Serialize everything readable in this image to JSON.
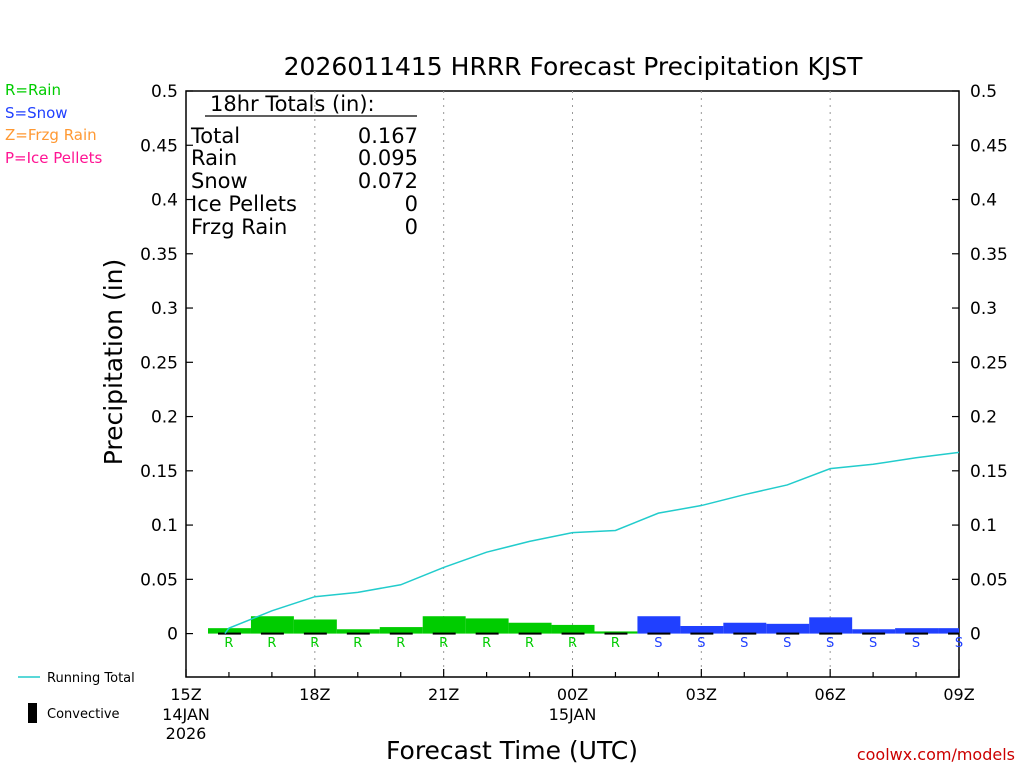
{
  "chart_data": {
    "type": "bar",
    "title": "2026011415 HRRR Forecast Precipitation KJST",
    "xlabel": "Forecast Time (UTC)",
    "ylabel": "Precipitation (in)",
    "ylim": [
      -0.04,
      0.5
    ],
    "xlim": [
      0,
      18
    ],
    "y_ticks": [
      "0",
      "0.05",
      "0.1",
      "0.15",
      "0.2",
      "0.25",
      "0.3",
      "0.35",
      "0.4",
      "0.45",
      "0.5"
    ],
    "y_tick_values": [
      0,
      0.05,
      0.1,
      0.15,
      0.2,
      0.25,
      0.3,
      0.35,
      0.4,
      0.45,
      0.5
    ],
    "x_ticks": [
      {
        "hour": 0,
        "label": "15Z",
        "sub1": "14JAN",
        "sub2": "2026"
      },
      {
        "hour": 3,
        "label": "18Z",
        "sub1": "",
        "sub2": ""
      },
      {
        "hour": 6,
        "label": "21Z",
        "sub1": "",
        "sub2": ""
      },
      {
        "hour": 9,
        "label": "00Z",
        "sub1": "15JAN",
        "sub2": ""
      },
      {
        "hour": 12,
        "label": "03Z",
        "sub1": "",
        "sub2": ""
      },
      {
        "hour": 15,
        "label": "06Z",
        "sub1": "",
        "sub2": ""
      },
      {
        "hour": 18,
        "label": "09Z",
        "sub1": "",
        "sub2": ""
      }
    ],
    "hourly_precip": {
      "hours": [
        1,
        2,
        3,
        4,
        5,
        6,
        7,
        8,
        9,
        10,
        11,
        12,
        13,
        14,
        15,
        16,
        17,
        18
      ],
      "values": [
        0.005,
        0.016,
        0.013,
        0.004,
        0.006,
        0.016,
        0.014,
        0.01,
        0.008,
        0.002,
        0.016,
        0.007,
        0.01,
        0.009,
        0.015,
        0.004,
        0.005,
        0.005
      ],
      "types": [
        "R",
        "R",
        "R",
        "R",
        "R",
        "R",
        "R",
        "R",
        "R",
        "R",
        "S",
        "S",
        "S",
        "S",
        "S",
        "S",
        "S",
        "S"
      ]
    },
    "running_total": {
      "name": "Running Total",
      "hours": [
        1,
        2,
        3,
        4,
        5,
        6,
        7,
        8,
        9,
        10,
        11,
        12,
        13,
        14,
        15,
        16,
        17,
        18
      ],
      "values": [
        0.005,
        0.021,
        0.034,
        0.038,
        0.045,
        0.061,
        0.075,
        0.085,
        0.093,
        0.095,
        0.111,
        0.118,
        0.128,
        0.137,
        0.152,
        0.156,
        0.162,
        0.167
      ]
    },
    "totals_box": {
      "heading": "18hr Totals (in):",
      "rows": [
        {
          "label": "Total",
          "value": "0.167"
        },
        {
          "label": "Rain",
          "value": "0.095"
        },
        {
          "label": "Snow",
          "value": "0.072"
        },
        {
          "label": "Ice Pellets",
          "value": "0"
        },
        {
          "label": "Frzg Rain",
          "value": "0"
        }
      ]
    },
    "colors": {
      "rain": "#00cc00",
      "snow": "#2040ff",
      "frzg": "#ff9933",
      "ice": "#ff1493",
      "running_total": "#22cccc",
      "convective": "#000000"
    }
  },
  "type_legend": [
    {
      "text": "R=Rain",
      "color": "#00cc00"
    },
    {
      "text": "S=Snow",
      "color": "#2040ff"
    },
    {
      "text": "Z=Frzg Rain",
      "color": "#ff9933"
    },
    {
      "text": "P=Ice Pellets",
      "color": "#ff1493"
    }
  ],
  "series_legend": {
    "running_total": "Running Total",
    "convective": "Convective"
  },
  "credit": "coolwx.com/models"
}
